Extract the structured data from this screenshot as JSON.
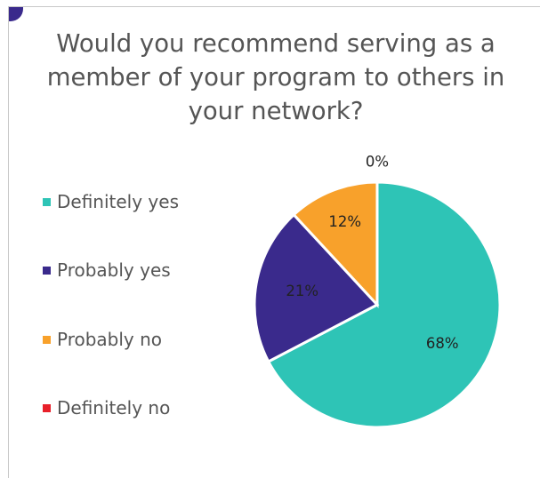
{
  "chart_data": {
    "type": "pie",
    "title": "Would you recommend serving as a member of your program to others in your network?",
    "categories": [
      "Definitely  yes",
      "Probably yes",
      "Probably no",
      "Definitely  no"
    ],
    "values": [
      68,
      21,
      12,
      0
    ],
    "data_labels": [
      "68%",
      "21%",
      "12%",
      "0%"
    ],
    "colors": [
      "#2ec4b6",
      "#3a2a8c",
      "#f8a12b",
      "#e8202a"
    ],
    "legend": "left"
  }
}
